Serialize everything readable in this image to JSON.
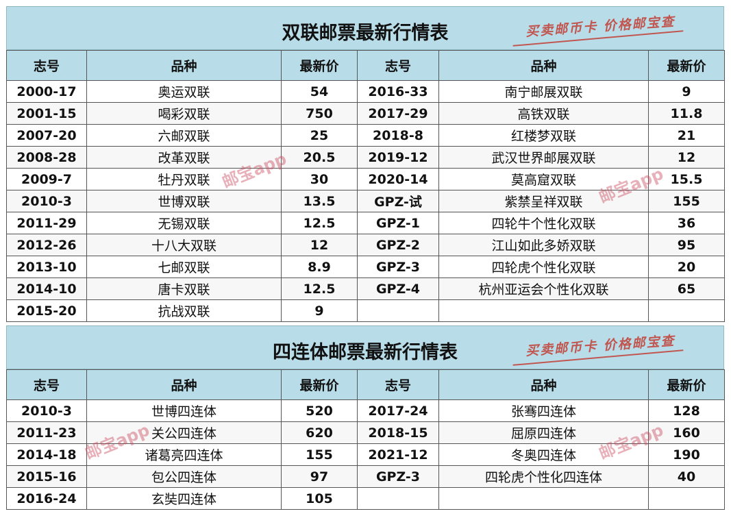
{
  "slogan": "买卖邮币卡 价格邮宝查",
  "watermark": "邮宝app",
  "headers": {
    "issue": "志号",
    "variety": "品种",
    "price": "最新价"
  },
  "pair_table": {
    "title": "双联邮票最新行情表",
    "rows": [
      [
        "2000-17",
        "奥运双联",
        "54",
        "2016-33",
        "南宁邮展双联",
        "9"
      ],
      [
        "2001-15",
        "喝彩双联",
        "750",
        "2017-29",
        "高铁双联",
        "11.8"
      ],
      [
        "2007-20",
        "六邮双联",
        "25",
        "2018-8",
        "红楼梦双联",
        "21"
      ],
      [
        "2008-28",
        "改革双联",
        "20.5",
        "2019-12",
        "武汉世界邮展双联",
        "12"
      ],
      [
        "2009-7",
        "牡丹双联",
        "30",
        "2020-14",
        "莫高窟双联",
        "15.5"
      ],
      [
        "2010-3",
        "世博双联",
        "13.5",
        "GPZ-试",
        "紫禁呈祥双联",
        "155"
      ],
      [
        "2011-29",
        "无锡双联",
        "12.5",
        "GPZ-1",
        "四轮牛个性化双联",
        "36"
      ],
      [
        "2012-26",
        "十八大双联",
        "12",
        "GPZ-2",
        "江山如此多娇双联",
        "95"
      ],
      [
        "2013-10",
        "七邮双联",
        "8.9",
        "GPZ-3",
        "四轮虎个性化双联",
        "20"
      ],
      [
        "2014-10",
        "唐卡双联",
        "12.5",
        "GPZ-4",
        "杭州亚运会个性化双联",
        "65"
      ],
      [
        "2015-20",
        "抗战双联",
        "9",
        "",
        "",
        ""
      ]
    ]
  },
  "block_table": {
    "title": "四连体邮票最新行情表",
    "rows": [
      [
        "2010-3",
        "世博四连体",
        "520",
        "2017-24",
        "张骞四连体",
        "128"
      ],
      [
        "2011-23",
        "关公四连体",
        "620",
        "2018-15",
        "屈原四连体",
        "160"
      ],
      [
        "2014-18",
        "诸葛亮四连体",
        "155",
        "2021-12",
        "冬奥四连体",
        "190"
      ],
      [
        "2015-16",
        "包公四连体",
        "97",
        "GPZ-3",
        "四轮虎个性化四连体",
        "40"
      ],
      [
        "2016-24",
        "玄奘四连体",
        "105",
        "",
        "",
        ""
      ]
    ]
  }
}
